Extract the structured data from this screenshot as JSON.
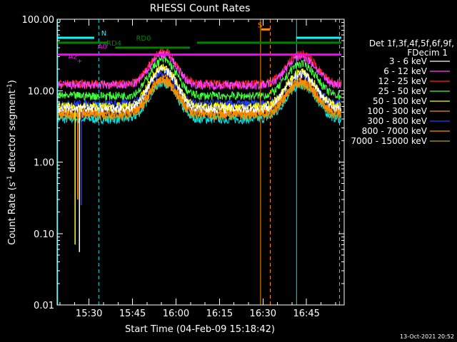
{
  "chart_data": {
    "type": "line",
    "title": "RHESSI Count Rates",
    "xlabel": "Start Time (04-Feb-09 15:18:42)",
    "ylabel": "Count Rate (s",
    "ylabel_sup": "-1",
    "ylabel_tail": " detector segment",
    "ylabel_sup2": "-1",
    "ylabel_close": ")",
    "yscale": "log",
    "ylim": [
      0.01,
      100
    ],
    "xlim_minutes": [
      15.3167,
      16.9667
    ],
    "ytick_labels": [
      "0.01",
      "0.10",
      "1.00",
      "10.00",
      "100.00"
    ],
    "ytick_values": [
      0.01,
      0.1,
      1,
      10,
      100
    ],
    "xtick_labels": [
      "15:30",
      "15:45",
      "16:00",
      "16:15",
      "16:30",
      "16:45"
    ],
    "xtick_values_hours": [
      15.5,
      15.75,
      16.0,
      16.25,
      16.5,
      16.75
    ],
    "legend_header": [
      "Det 1f,3f,4f,5f,6f,9f,",
      "FDecim 1"
    ],
    "legend_placement": "right",
    "footer_date": "13-Oct-2021 20:52",
    "series": [
      {
        "name": "3 - 6 keV",
        "color": "#ffffff",
        "base": 5.6,
        "peak1": 20,
        "peak2": 17
      },
      {
        "name": "6 - 12 keV",
        "color": "#ff40ff",
        "base": 12,
        "peak1": 33,
        "peak2": 30
      },
      {
        "name": "12 - 25 keV",
        "color": "#ff2020",
        "base": 12.5,
        "peak1": 36,
        "peak2": 33
      },
      {
        "name": "25 - 50 keV",
        "color": "#40ff40",
        "base": 8.5,
        "peak1": 27,
        "peak2": 24
      },
      {
        "name": "50 - 100 keV",
        "color": "#ffff00",
        "base": 6,
        "peak1": 21,
        "peak2": 18
      },
      {
        "name": "100 - 300 keV",
        "color": "#ff8c00",
        "base": 5.2,
        "peak1": 15,
        "peak2": 14
      },
      {
        "name": "300 - 800 keV",
        "color": "#2040ff",
        "base": 6.5,
        "peak1": 18,
        "peak2": 17
      },
      {
        "name": "800 - 7000 keV",
        "color": "#ff8c00",
        "base": 4.8,
        "peak1": 14,
        "peak2": 13
      },
      {
        "name": "7000 - 15000 keV",
        "color": "#b8a020",
        "base": 4.5,
        "peak1": 13.5,
        "peak2": 12
      }
    ],
    "extra_trace": {
      "color": "#00e5e5",
      "base": 4.0,
      "peak1": 13,
      "peak2": 12
    },
    "flag_bars": [
      {
        "label": "N",
        "color": "#00ffff",
        "segments": [
          [
            15.3167,
            15.53
          ],
          [
            16.69,
            16.95
          ]
        ],
        "level": 55
      },
      {
        "label": "RD0",
        "color": "#008000",
        "segments": [
          [
            15.3167,
            15.61
          ],
          [
            16.12,
            16.95
          ]
        ],
        "level": 47
      },
      {
        "label": "RD4",
        "color": "#008000",
        "segments": [
          [
            15.65,
            16.08
          ]
        ],
        "level": 40
      },
      {
        "label": "A0",
        "color": "#ff00ff",
        "segments": [
          [
            15.3167,
            16.95
          ]
        ],
        "level": 32
      },
      {
        "label": "A2",
        "color": "#ff00ff",
        "segments": [],
        "level": 26
      },
      {
        "label": "S",
        "color": "#ff8c00",
        "segments": [
          [
            16.49,
            16.54
          ]
        ],
        "level": 72
      }
    ],
    "vertical_lines": [
      {
        "color": "#00e5e5",
        "x": 15.32,
        "style": "solid"
      },
      {
        "color": "#00e5e5",
        "x": 15.556,
        "style": "dashed"
      },
      {
        "color": "#ff8c00",
        "x": 16.486,
        "style": "solid"
      },
      {
        "color": "#ff8c00",
        "x": 16.542,
        "style": "dashed"
      },
      {
        "color": "#00e5e5",
        "x": 16.693,
        "style": "solid"
      },
      {
        "color": "#00e5e5",
        "x": 16.94,
        "style": "dashed"
      }
    ],
    "dips": [
      {
        "x": 15.42,
        "min": 0.07
      },
      {
        "x": 15.435,
        "min": 0.3
      },
      {
        "x": 15.445,
        "min": 0.055
      },
      {
        "x": 15.455,
        "min": 0.25
      }
    ]
  }
}
